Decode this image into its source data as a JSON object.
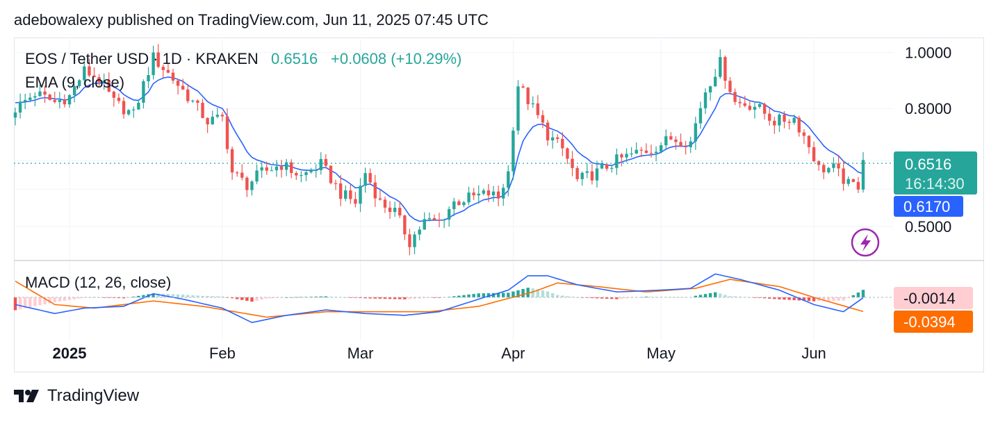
{
  "header": {
    "text": "adebowalexy published on TradingView.com, Jun 11, 2025 07:45 UTC"
  },
  "footer": {
    "brand": "TradingView",
    "logo_icon": "tradingview-logo-icon"
  },
  "legend": {
    "symbol": "EOS / Tether USD · 1D · KRAKEN",
    "price": "0.6516",
    "change": "+0.0608 (+10.29%)",
    "ema": "EMA (9, close)",
    "macd": "MACD (12, 26, close)"
  },
  "badges": {
    "price": "0.6516",
    "countdown": "16:14:30",
    "ema": "0.6170",
    "macd": "-0.0014",
    "signal": "-0.0394"
  },
  "icons": {
    "flash": "lightning-bolt-icon"
  },
  "colors": {
    "up": "#26a69a",
    "down": "#ef5350",
    "ema": "#2962ff",
    "macd_line": "#2962ff",
    "signal_line": "#ff6d00",
    "hist_up_strong": "#26a69a",
    "hist_up_weak": "#b2dfdb",
    "hist_down_strong": "#ef5350",
    "hist_down_weak": "#ffcdd2",
    "badge_price": "#26a69a",
    "badge_ema": "#2962ff",
    "badge_macd": "#ffcdd2",
    "badge_signal": "#ff6d00",
    "flash_icon": "#9c27b0"
  },
  "chart_data": [
    {
      "type": "candlestick",
      "x_range": [
        "2024-12-21",
        "2025-06-11"
      ],
      "x_ticks": [
        {
          "date": "2025-01-01",
          "label": "2025"
        },
        {
          "date": "2025-02-01",
          "label": "Feb"
        },
        {
          "date": "2025-03-01",
          "label": "Mar"
        },
        {
          "date": "2025-04-01",
          "label": "Apr"
        },
        {
          "date": "2025-05-01",
          "label": "May"
        },
        {
          "date": "2025-06-01",
          "label": "Jun"
        }
      ],
      "y_scale": "log",
      "y_range": [
        0.44,
        1.05
      ],
      "y_ticks": [
        "1.0000",
        "0.8000",
        "0.5000"
      ],
      "last_price": 0.6516,
      "last_ema": 0.617,
      "anchors": [
        [
          "2024-12-21",
          0.8
        ],
        [
          "2024-12-25",
          0.85
        ],
        [
          "2024-12-29",
          0.82
        ],
        [
          "2025-01-01",
          0.84
        ],
        [
          "2025-01-04",
          0.93
        ],
        [
          "2025-01-07",
          0.9
        ],
        [
          "2025-01-10",
          0.82
        ],
        [
          "2025-01-14",
          0.78
        ],
        [
          "2025-01-18",
          0.98
        ],
        [
          "2025-01-21",
          0.92
        ],
        [
          "2025-01-25",
          0.84
        ],
        [
          "2025-01-29",
          0.76
        ],
        [
          "2025-02-01",
          0.77
        ],
        [
          "2025-02-03",
          0.62
        ],
        [
          "2025-02-06",
          0.59
        ],
        [
          "2025-02-09",
          0.62
        ],
        [
          "2025-02-13",
          0.64
        ],
        [
          "2025-02-17",
          0.61
        ],
        [
          "2025-02-21",
          0.64
        ],
        [
          "2025-02-25",
          0.57
        ],
        [
          "2025-02-28",
          0.55
        ],
        [
          "2025-03-02",
          0.62
        ],
        [
          "2025-03-05",
          0.55
        ],
        [
          "2025-03-08",
          0.53
        ],
        [
          "2025-03-11",
          0.47
        ],
        [
          "2025-03-14",
          0.51
        ],
        [
          "2025-03-17",
          0.51
        ],
        [
          "2025-03-20",
          0.55
        ],
        [
          "2025-03-23",
          0.56
        ],
        [
          "2025-03-27",
          0.57
        ],
        [
          "2025-03-29",
          0.56
        ],
        [
          "2025-03-31",
          0.62
        ],
        [
          "2025-04-02",
          0.88
        ],
        [
          "2025-04-05",
          0.8
        ],
        [
          "2025-04-08",
          0.72
        ],
        [
          "2025-04-11",
          0.68
        ],
        [
          "2025-04-14",
          0.6
        ],
        [
          "2025-04-18",
          0.62
        ],
        [
          "2025-04-22",
          0.65
        ],
        [
          "2025-04-26",
          0.67
        ],
        [
          "2025-04-29",
          0.68
        ],
        [
          "2025-05-03",
          0.71
        ],
        [
          "2025-05-07",
          0.7
        ],
        [
          "2025-05-10",
          0.86
        ],
        [
          "2025-05-13",
          0.96
        ],
        [
          "2025-05-16",
          0.82
        ],
        [
          "2025-05-20",
          0.81
        ],
        [
          "2025-05-24",
          0.76
        ],
        [
          "2025-05-28",
          0.77
        ],
        [
          "2025-05-31",
          0.69
        ],
        [
          "2025-06-02",
          0.63
        ],
        [
          "2025-06-05",
          0.63
        ],
        [
          "2025-06-08",
          0.59
        ],
        [
          "2025-06-10",
          0.59
        ],
        [
          "2025-06-11",
          0.6516
        ]
      ]
    },
    {
      "type": "macd",
      "macd_line": -0.0014,
      "signal_line": -0.0394,
      "macd_anchors": [
        [
          "2024-12-21",
          -0.02
        ],
        [
          "2024-12-29",
          -0.045
        ],
        [
          "2025-01-04",
          -0.03
        ],
        [
          "2025-01-12",
          -0.025
        ],
        [
          "2025-01-18",
          0.01
        ],
        [
          "2025-01-24",
          -0.005
        ],
        [
          "2025-02-01",
          -0.03
        ],
        [
          "2025-02-07",
          -0.07
        ],
        [
          "2025-02-14",
          -0.05
        ],
        [
          "2025-02-22",
          -0.035
        ],
        [
          "2025-03-02",
          -0.045
        ],
        [
          "2025-03-10",
          -0.05
        ],
        [
          "2025-03-17",
          -0.04
        ],
        [
          "2025-03-25",
          -0.005
        ],
        [
          "2025-03-31",
          0.02
        ],
        [
          "2025-04-04",
          0.06
        ],
        [
          "2025-04-08",
          0.06
        ],
        [
          "2025-04-14",
          0.035
        ],
        [
          "2025-04-22",
          0.015
        ],
        [
          "2025-05-01",
          0.02
        ],
        [
          "2025-05-07",
          0.025
        ],
        [
          "2025-05-12",
          0.065
        ],
        [
          "2025-05-17",
          0.05
        ],
        [
          "2025-05-25",
          0.02
        ],
        [
          "2025-06-01",
          -0.02
        ],
        [
          "2025-06-07",
          -0.04
        ],
        [
          "2025-06-11",
          -0.0014
        ]
      ],
      "signal_anchors": [
        [
          "2024-12-21",
          0.045
        ],
        [
          "2024-12-29",
          -0.02
        ],
        [
          "2025-01-06",
          -0.03
        ],
        [
          "2025-01-18",
          -0.01
        ],
        [
          "2025-01-28",
          -0.025
        ],
        [
          "2025-02-10",
          -0.055
        ],
        [
          "2025-02-22",
          -0.04
        ],
        [
          "2025-03-05",
          -0.04
        ],
        [
          "2025-03-15",
          -0.04
        ],
        [
          "2025-03-25",
          -0.025
        ],
        [
          "2025-04-05",
          0.015
        ],
        [
          "2025-04-10",
          0.04
        ],
        [
          "2025-04-18",
          0.03
        ],
        [
          "2025-04-28",
          0.015
        ],
        [
          "2025-05-08",
          0.025
        ],
        [
          "2025-05-15",
          0.05
        ],
        [
          "2025-05-25",
          0.03
        ],
        [
          "2025-06-01",
          0.0
        ],
        [
          "2025-06-11",
          -0.0394
        ]
      ],
      "y_range": [
        -0.085,
        0.085
      ]
    }
  ]
}
